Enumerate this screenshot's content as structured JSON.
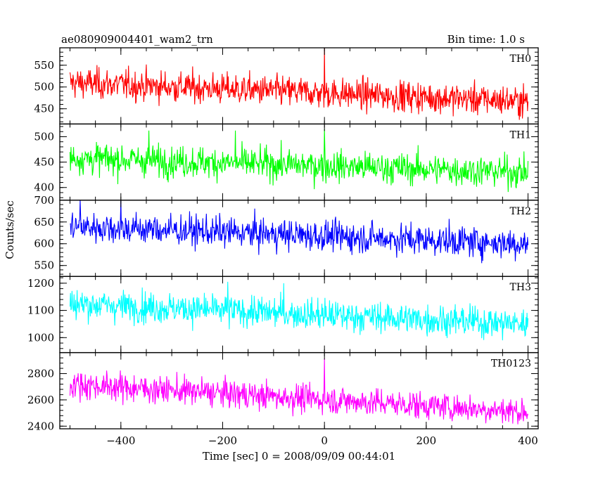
{
  "header": {
    "obs_id": "ae080909004401_wam2_trn",
    "bin_time": "Bin time: 1.0 s"
  },
  "axes": {
    "xlabel": "Time [sec] 0 = 2008/09/09 00:44:01",
    "ylabel": "Counts/sec"
  },
  "chart_data": {
    "type": "line",
    "title": "ae080909004401_wam2_trn",
    "subtitle": "Bin time: 1.0 s",
    "xlabel": "Time [sec] 0 = 2008/09/09 00:44:01",
    "ylabel": "Counts/sec",
    "xlim": [
      -520,
      420
    ],
    "xticks": [
      -400,
      -200,
      0,
      200,
      400
    ],
    "x_step": 1.0,
    "x_start": -500,
    "x_end": 400,
    "grid": false,
    "panels": [
      {
        "name": "TH0",
        "color": "#ff0000",
        "ylim": [
          415,
          590
        ],
        "yticks": [
          450,
          500,
          550
        ],
        "mean_start": 510,
        "mean_end": 467,
        "noise": 30,
        "spikes": [
          {
            "x": 0,
            "y": 592
          }
        ]
      },
      {
        "name": "TH1",
        "color": "#00ff00",
        "ylim": [
          375,
          525
        ],
        "yticks": [
          400,
          450,
          500
        ],
        "mean_start": 458,
        "mean_end": 430,
        "noise": 26,
        "spikes": [
          {
            "x": -345,
            "y": 512
          },
          {
            "x": -175,
            "y": 512
          },
          {
            "x": 0,
            "y": 515
          }
        ]
      },
      {
        "name": "TH2",
        "color": "#0000ff",
        "ylim": [
          525,
          700
        ],
        "yticks": [
          550,
          600,
          650,
          700
        ],
        "mean_start": 640,
        "mean_end": 600,
        "noise": 30,
        "spikes": [
          {
            "x": -480,
            "y": 700
          },
          {
            "x": -400,
            "y": 700
          }
        ]
      },
      {
        "name": "TH3",
        "color": "#00ffff",
        "ylim": [
          945,
          1225
        ],
        "yticks": [
          1000,
          1100,
          1200
        ],
        "mean_start": 1125,
        "mean_end": 1050,
        "noise": 48,
        "spikes": [
          {
            "x": -190,
            "y": 1205
          },
          {
            "x": -80,
            "y": 1200
          }
        ]
      },
      {
        "name": "TH0123",
        "color": "#ff00ff",
        "ylim": [
          2380,
          2960
        ],
        "yticks": [
          2400,
          2600,
          2800
        ],
        "mean_start": 2720,
        "mean_end": 2510,
        "noise": 90,
        "spikes": [
          {
            "x": 0,
            "y": 2915
          }
        ]
      }
    ]
  }
}
